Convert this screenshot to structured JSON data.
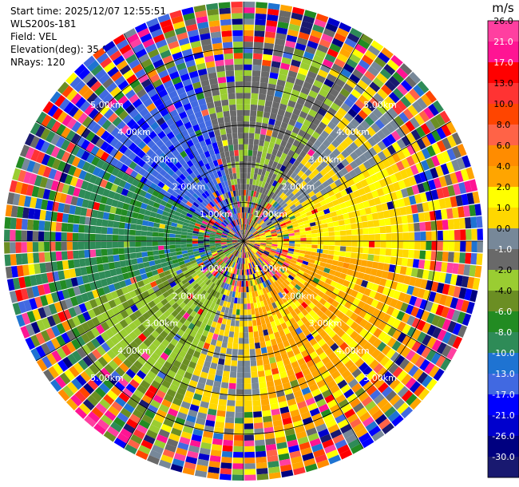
{
  "info": {
    "start_time": "Start time: 2025/12/07 12:55:51",
    "instrument": "WLS200s-181",
    "field": "Field: VEL",
    "elevation": "Elevation(deg): 35.00",
    "nrays": "NRays: 120"
  },
  "colorbar": {
    "unit": "m/s",
    "bins": [
      {
        "label": "26.0",
        "color": "#ff3fa0"
      },
      {
        "label": "21.0",
        "color": "#ff1493"
      },
      {
        "label": "17.0",
        "color": "#ff0000"
      },
      {
        "label": "13.0",
        "color": "#ff3333"
      },
      {
        "label": "10.0",
        "color": "#ff4500"
      },
      {
        "label": "8.0",
        "color": "#ff6347"
      },
      {
        "label": "6.0",
        "color": "#ff8c00"
      },
      {
        "label": "4.0",
        "color": "#ffa500"
      },
      {
        "label": "2.0",
        "color": "#ffff00"
      },
      {
        "label": "1.0",
        "color": "#ffd700"
      },
      {
        "label": "0.0",
        "color": "#778899"
      },
      {
        "label": "-1.0",
        "color": "#696969"
      },
      {
        "label": "-2.0",
        "color": "#9acd32"
      },
      {
        "label": "-4.0",
        "color": "#6b8e23"
      },
      {
        "label": "-6.0",
        "color": "#228b22"
      },
      {
        "label": "-8.0",
        "color": "#2e8b57"
      },
      {
        "label": "-10.0",
        "color": "#1e73d2"
      },
      {
        "label": "-13.0",
        "color": "#4169e1"
      },
      {
        "label": "-17.0",
        "color": "#0000ff"
      },
      {
        "label": "-21.0",
        "color": "#0000cd"
      },
      {
        "label": "-26.0",
        "color": "#000080"
      },
      {
        "label": "-30.0",
        "color": "#191970"
      }
    ]
  },
  "chart_data": {
    "type": "heatmap",
    "projection": "polar PPI",
    "field": "VEL",
    "units": "m/s",
    "nrays": 120,
    "elevation_deg": 35.0,
    "range_rings_km": [
      {
        "value": 1,
        "label": "1.00km"
      },
      {
        "value": 2,
        "label": "2.00km"
      },
      {
        "value": 3,
        "label": "3.00km"
      },
      {
        "value": 4,
        "label": "4.00km"
      },
      {
        "value": 5,
        "label": "5.00km"
      }
    ],
    "max_range_km": 6.2,
    "vmin": -30.0,
    "vmax": 30.0,
    "dominant_velocity_by_sector": [
      {
        "azimuth_deg": [
          300,
          345
        ],
        "velocity_ms": -18,
        "note": "blue (toward)"
      },
      {
        "azimuth_deg": [
          250,
          300
        ],
        "velocity_ms": -12,
        "note": "royal blue"
      },
      {
        "azimuth_deg": [
          200,
          250
        ],
        "velocity_ms": -5,
        "note": "green"
      },
      {
        "azimuth_deg": [
          175,
          200
        ],
        "velocity_ms": 3,
        "note": "yellow"
      },
      {
        "azimuth_deg": [
          100,
          175
        ],
        "velocity_ms": 9,
        "note": "red-orange (away)"
      },
      {
        "azimuth_deg": [
          60,
          100
        ],
        "velocity_ms": 5,
        "note": "orange"
      },
      {
        "azimuth_deg": [
          35,
          60
        ],
        "velocity_ms": 2,
        "note": "yellow"
      },
      {
        "azimuth_deg": [
          345,
          35
        ],
        "velocity_ms": -2,
        "note": "olive / green"
      }
    ],
    "noise_beyond_km": 4.3
  }
}
